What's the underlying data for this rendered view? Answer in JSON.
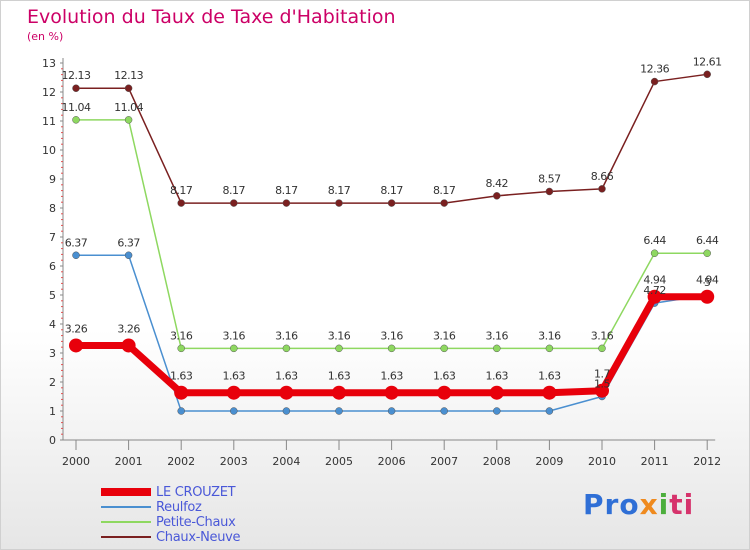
{
  "chart_data": {
    "type": "line",
    "title": "Evolution du Taux de Taxe d'Habitation",
    "ylabel": "(en %)",
    "xlabel": "",
    "x": [
      "2000",
      "2001",
      "2002",
      "2003",
      "2004",
      "2005",
      "2006",
      "2007",
      "2008",
      "2009",
      "2010",
      "2011",
      "2012"
    ],
    "ylim": [
      0,
      13
    ],
    "yticks": [
      "0",
      "1",
      "2",
      "3",
      "4",
      "5",
      "6",
      "7",
      "8",
      "9",
      "10",
      "11",
      "12",
      "13"
    ],
    "grid": false,
    "legend_position": "bottom-left",
    "series": [
      {
        "name": "LE CROUZET",
        "color": "#e8000b",
        "values": [
          3.26,
          3.26,
          1.63,
          1.63,
          1.63,
          1.63,
          1.63,
          1.63,
          1.63,
          1.63,
          1.7,
          4.94,
          4.94
        ],
        "labels": [
          "3.26",
          "3.26",
          "1.63",
          "1.63",
          "1.63",
          "1.63",
          "1.63",
          "1.63",
          "1.63",
          "1.63",
          "1.7",
          "4.94",
          "4.94"
        ]
      },
      {
        "name": "Reulfoz",
        "color": "#4a8fd0",
        "values": [
          6.37,
          6.37,
          1.0,
          1.0,
          1.0,
          1.0,
          1.0,
          1.0,
          1.0,
          1.0,
          1.5,
          4.72,
          5.0
        ],
        "labels": [
          "6.37",
          "6.37",
          "",
          "",
          "",
          "",
          "",
          "",
          "",
          "",
          "1.5",
          "4.72",
          "5"
        ]
      },
      {
        "name": "Petite-Chaux",
        "color": "#8ed860",
        "values": [
          11.04,
          11.04,
          3.16,
          3.16,
          3.16,
          3.16,
          3.16,
          3.16,
          3.16,
          3.16,
          3.16,
          6.44,
          6.44
        ],
        "labels": [
          "11.04",
          "11.04",
          "3.16",
          "3.16",
          "3.16",
          "3.16",
          "3.16",
          "3.16",
          "3.16",
          "3.16",
          "3.16",
          "6.44",
          "6.44"
        ]
      },
      {
        "name": "Chaux-Neuve",
        "color": "#7a2020",
        "values": [
          12.13,
          12.13,
          8.17,
          8.17,
          8.17,
          8.17,
          8.17,
          8.17,
          8.42,
          8.57,
          8.66,
          12.36,
          12.61
        ],
        "labels": [
          "12.13",
          "12.13",
          "8.17",
          "8.17",
          "8.17",
          "8.17",
          "8.17",
          "8.17",
          "8.42",
          "8.57",
          "8.66",
          "12.36",
          "12.61"
        ]
      }
    ]
  },
  "logo": {
    "part1": "Pro",
    "part2": "x",
    "part3": "i",
    "part4": "ti"
  }
}
